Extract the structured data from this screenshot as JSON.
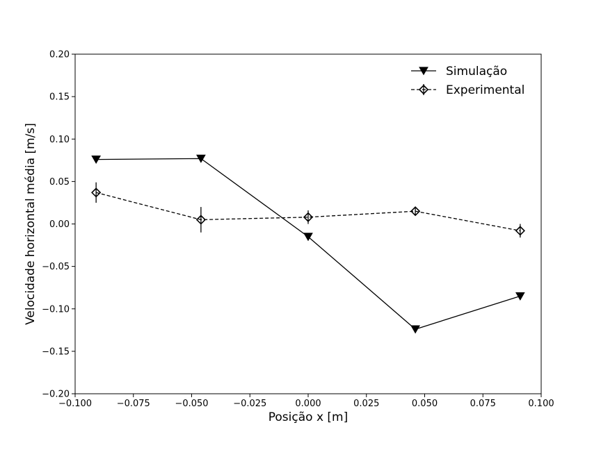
{
  "chart_data": {
    "type": "line",
    "title": "",
    "xlabel": "Posição x [m]",
    "ylabel": "Velocidade horizontal média [m/s]",
    "xlim": [
      -0.1,
      0.1
    ],
    "ylim": [
      -0.2,
      0.2
    ],
    "xticks": [
      -0.1,
      -0.075,
      -0.05,
      -0.025,
      0.0,
      0.025,
      0.05,
      0.075,
      0.1
    ],
    "xtick_labels": [
      "−0.100",
      "−0.075",
      "−0.050",
      "−0.025",
      "0.000",
      "0.025",
      "0.050",
      "0.075",
      "0.100"
    ],
    "yticks": [
      -0.2,
      -0.15,
      -0.1,
      -0.05,
      0.0,
      0.05,
      0.1,
      0.15,
      0.2
    ],
    "ytick_labels": [
      "−0.20",
      "−0.15",
      "−0.10",
      "−0.05",
      "0.00",
      "0.05",
      "0.10",
      "0.15",
      "0.20"
    ],
    "grid": false,
    "legend_position": "top-right",
    "series": [
      {
        "name": "Simulação",
        "marker": "triangle-down",
        "linestyle": "solid",
        "color": "#000000",
        "x": [
          -0.091,
          -0.046,
          0.0,
          0.046,
          0.091
        ],
        "y": [
          0.076,
          0.077,
          -0.015,
          -0.124,
          -0.085
        ]
      },
      {
        "name": "Experimental",
        "marker": "diamond-open",
        "linestyle": "dashed",
        "color": "#000000",
        "x": [
          -0.091,
          -0.046,
          0.0,
          0.046,
          0.091
        ],
        "y": [
          0.037,
          0.005,
          0.008,
          0.015,
          -0.008
        ],
        "yerr": [
          0.012,
          0.015,
          0.008,
          0.004,
          0.008
        ]
      }
    ]
  }
}
